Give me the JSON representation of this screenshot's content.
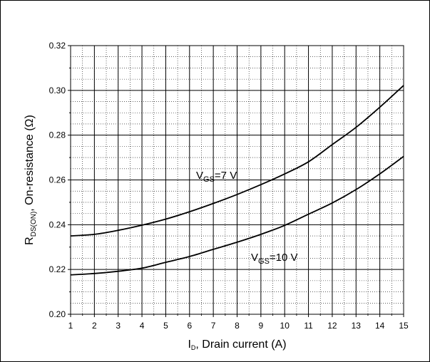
{
  "chart_data": {
    "type": "line",
    "title": "",
    "xlabel": {
      "main": "I",
      "sub": "D",
      "rest": ", Drain current (A)"
    },
    "ylabel": {
      "main": "R",
      "sub": "DS(ON)",
      "rest": ", On-resistance (Ω)"
    },
    "xlim": [
      1,
      15
    ],
    "ylim": [
      0.2,
      0.32
    ],
    "x_ticks": [
      "1",
      "2",
      "3",
      "4",
      "5",
      "6",
      "7",
      "8",
      "9",
      "10",
      "11",
      "12",
      "13",
      "14",
      "15"
    ],
    "y_ticks": [
      "0.20",
      "0.22",
      "0.24",
      "0.26",
      "0.28",
      "0.30",
      "0.32"
    ],
    "grid": true,
    "series": [
      {
        "name": "VGS=7 V",
        "label": {
          "main": "V",
          "sub": "GS",
          "rest": "=7 V"
        },
        "x": [
          1,
          2,
          3,
          4,
          5,
          6,
          7,
          8,
          9,
          10,
          11,
          12,
          13,
          14,
          15
        ],
        "y": [
          0.235,
          0.2357,
          0.2375,
          0.2398,
          0.2425,
          0.2458,
          0.2495,
          0.2535,
          0.2579,
          0.2627,
          0.2681,
          0.2758,
          0.2835,
          0.2925,
          0.3022
        ]
      },
      {
        "name": "VGS=10 V",
        "label": {
          "main": "V",
          "sub": "GS",
          "rest": "=10 V"
        },
        "x": [
          1,
          2,
          3,
          4,
          5,
          6,
          7,
          8,
          9,
          10,
          11,
          12,
          13,
          14,
          15
        ],
        "y": [
          0.2176,
          0.2182,
          0.2192,
          0.2206,
          0.2232,
          0.2258,
          0.229,
          0.2322,
          0.2357,
          0.2397,
          0.2447,
          0.2497,
          0.2557,
          0.2627,
          0.2705
        ]
      }
    ]
  }
}
